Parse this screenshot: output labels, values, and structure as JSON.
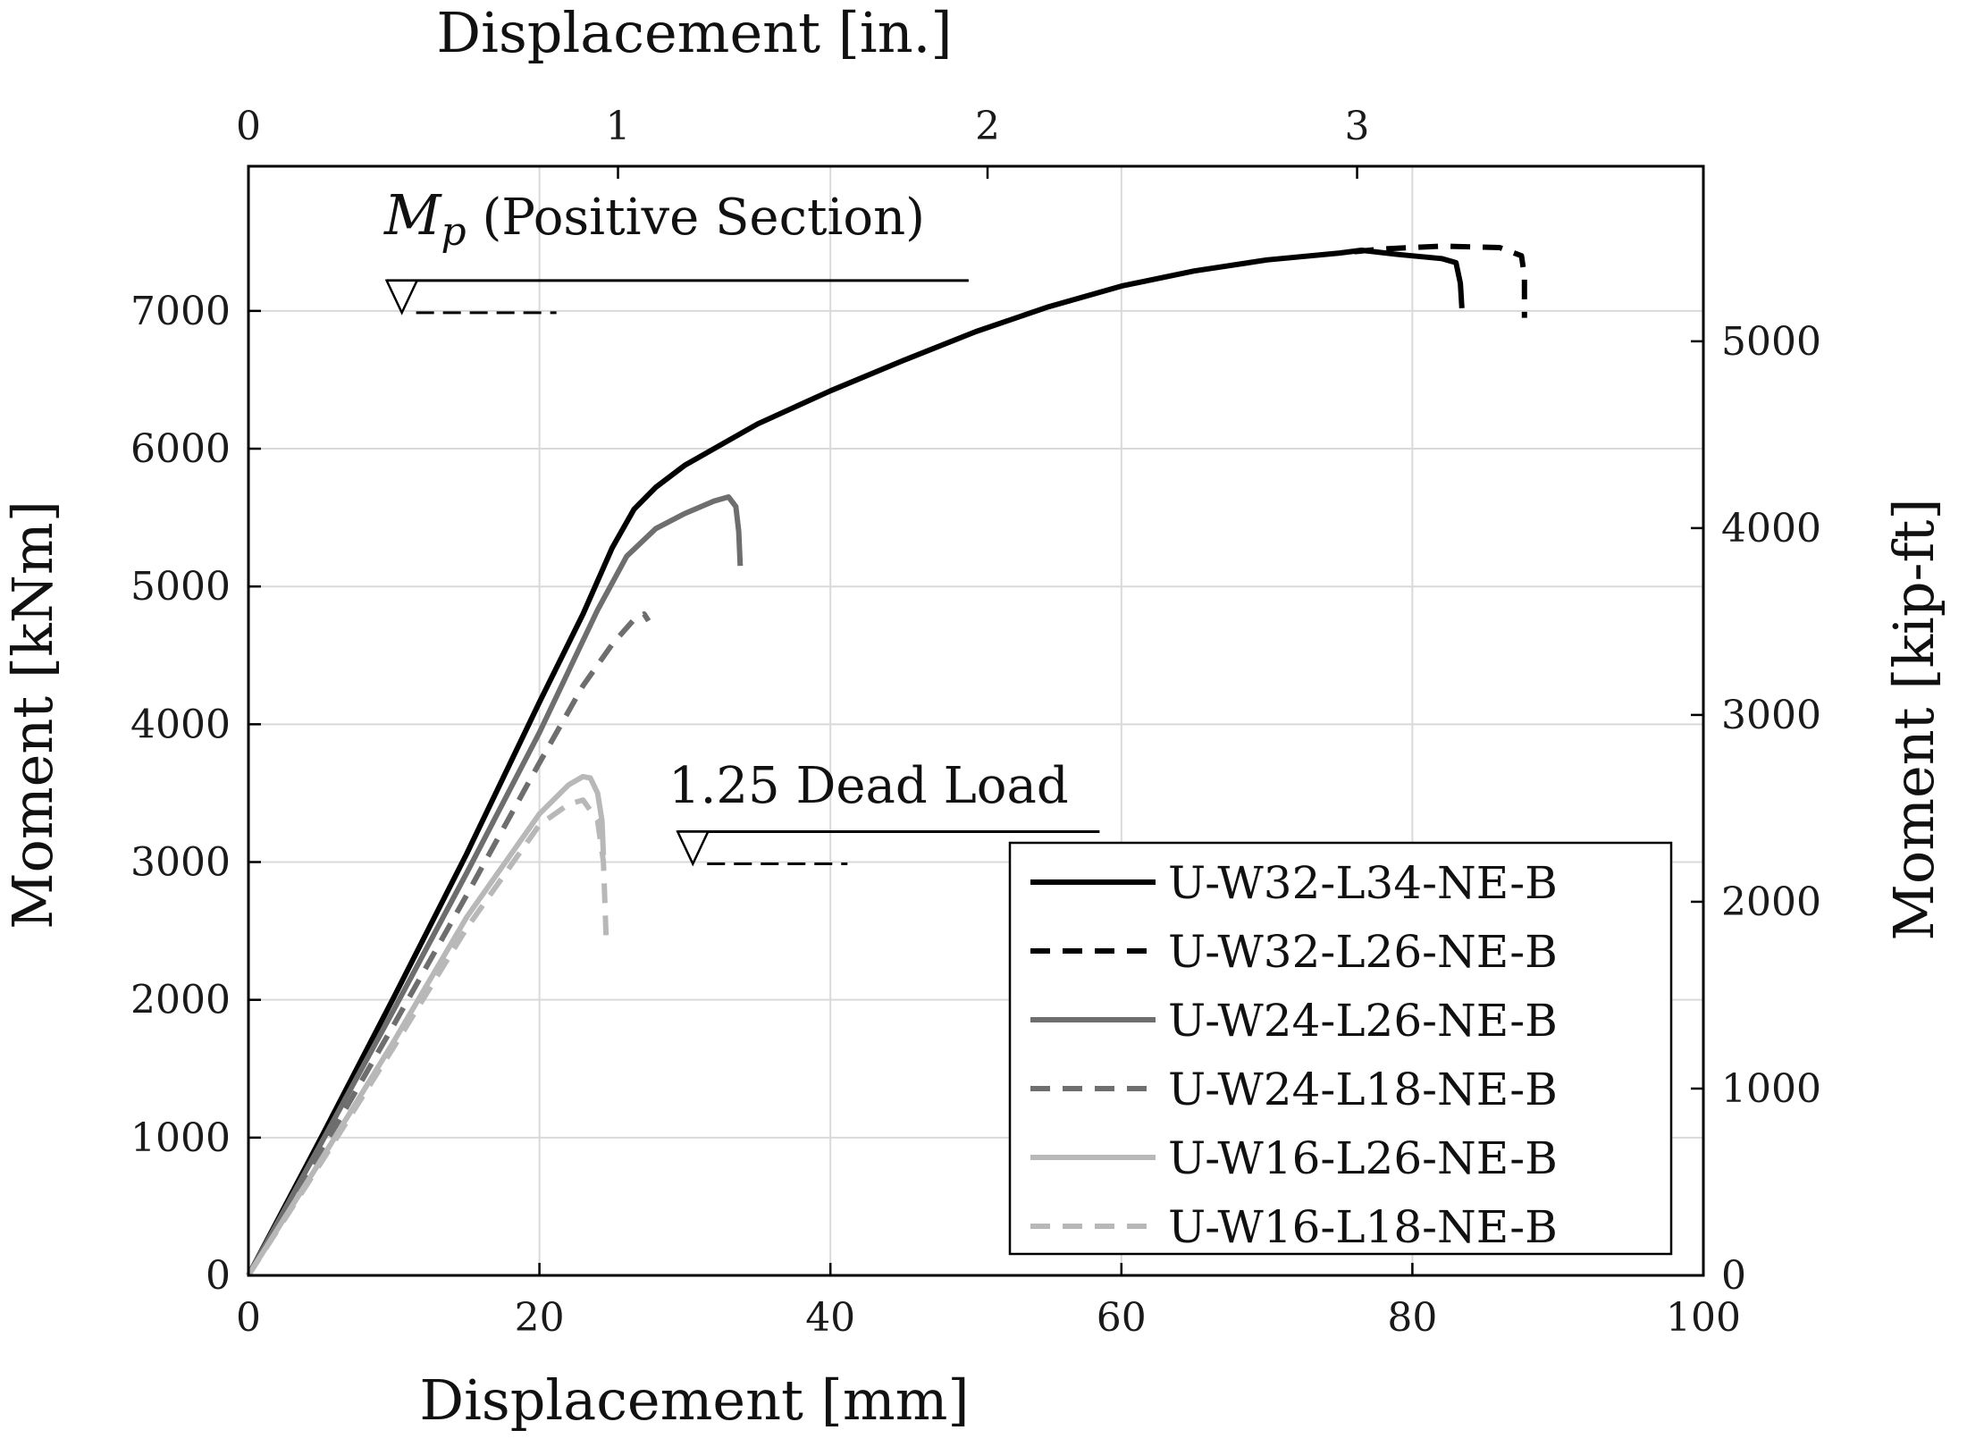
{
  "chart_data": {
    "type": "line",
    "xlabel": "Displacement [mm]",
    "ylabel": "Moment [kNm]",
    "x2label": "Displacement [in.]",
    "y2label": "Moment [kip-ft]",
    "xlim": [
      0,
      100
    ],
    "ylim": [
      0,
      8050
    ],
    "x2lim": [
      0,
      3.937
    ],
    "y2lim": [
      0,
      5937
    ],
    "x_ticks": [
      "0",
      "20",
      "40",
      "60",
      "80",
      "100"
    ],
    "y_ticks": [
      "0",
      "1000",
      "2000",
      "3000",
      "4000",
      "5000",
      "6000",
      "7000"
    ],
    "x2_ticks": [
      "0",
      "1",
      "2",
      "3"
    ],
    "y2_ticks": [
      "0",
      "1000",
      "2000",
      "3000",
      "4000",
      "5000"
    ],
    "grid": true,
    "legend_position": "bottom-right",
    "annotations": [
      {
        "name": "mp",
        "symbol": "M",
        "subscript": "p",
        "text": " (Positive Section)",
        "level": 7000,
        "x_range": [
          9.5,
          49.5
        ]
      },
      {
        "name": "dead-load",
        "text": "1.25 Dead Load",
        "level": 3000,
        "x_range": [
          29.5,
          58.5
        ]
      }
    ],
    "series": [
      {
        "name": "U-W32-L34-NE-B",
        "color": "#000000",
        "dash": "solid",
        "x": [
          0,
          5,
          10,
          15,
          20,
          23,
          25,
          26.5,
          28,
          30,
          35,
          40,
          45,
          50,
          55,
          60,
          65,
          70,
          75,
          76.5,
          79,
          82,
          83,
          83.3,
          83.4
        ],
        "y": [
          0,
          1000,
          2020,
          3060,
          4160,
          4800,
          5280,
          5560,
          5720,
          5880,
          6180,
          6420,
          6640,
          6850,
          7030,
          7180,
          7290,
          7370,
          7420,
          7440,
          7410,
          7380,
          7350,
          7200,
          7020
        ]
      },
      {
        "name": "U-W32-L26-NE-B",
        "color": "#000000",
        "dash": "dashed",
        "x": [
          76,
          78,
          82,
          86,
          87.5,
          87.7,
          87.7
        ],
        "y": [
          7430,
          7450,
          7470,
          7460,
          7400,
          7250,
          6950
        ]
      },
      {
        "name": "U-W24-L26-NE-B",
        "color": "#6e6e6e",
        "dash": "solid",
        "x": [
          0,
          5,
          10,
          15,
          20,
          24,
          26,
          28,
          30,
          32,
          33,
          33.5,
          33.7,
          33.8
        ],
        "y": [
          0,
          960,
          1930,
          2920,
          3940,
          4830,
          5220,
          5420,
          5530,
          5620,
          5650,
          5580,
          5400,
          5150
        ]
      },
      {
        "name": "U-W24-L18-NE-B",
        "color": "#6e6e6e",
        "dash": "dashed",
        "x": [
          0,
          5,
          10,
          15,
          20,
          23,
          25,
          26.5,
          27.2,
          27.5
        ],
        "y": [
          0,
          900,
          1820,
          2760,
          3720,
          4280,
          4580,
          4760,
          4800,
          4750
        ]
      },
      {
        "name": "U-W16-L26-NE-B",
        "color": "#b8b8b8",
        "dash": "solid",
        "x": [
          0,
          5,
          10,
          15,
          20,
          22,
          23,
          23.5,
          24,
          24.3,
          24.4
        ],
        "y": [
          0,
          840,
          1700,
          2600,
          3350,
          3560,
          3620,
          3610,
          3500,
          3300,
          3050
        ]
      },
      {
        "name": "U-W16-L18-NE-B",
        "color": "#b8b8b8",
        "dash": "dashed",
        "x": [
          0,
          5,
          10,
          15,
          20,
          22,
          23,
          24,
          24.4,
          24.5,
          24.6
        ],
        "y": [
          0,
          820,
          1660,
          2520,
          3270,
          3420,
          3450,
          3300,
          3000,
          2700,
          2400
        ]
      }
    ]
  }
}
